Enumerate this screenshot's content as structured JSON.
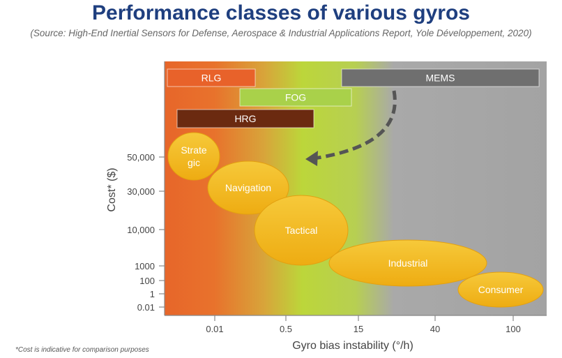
{
  "title": "Performance classes of various gyros",
  "subtitle": "(Source: High-End Inertial Sensors for Defense, Aerospace & Industrial Applications Report, Yole Développement, 2020)",
  "footnote": "*Cost is indicative for comparison purposes",
  "chart_data": {
    "type": "bubble",
    "xlabel": "Gyro bias instability (°/h)",
    "ylabel": "Cost* ($)",
    "x_ticks": [
      "0.01",
      "0.5",
      "15",
      "40",
      "100"
    ],
    "y_ticks": [
      "50,000",
      "30,000",
      "10,000",
      "1000",
      "100",
      "1",
      "0.01"
    ],
    "technology_bars": [
      {
        "name": "RLG",
        "color": "#e8622a",
        "x_range": [
          "",
          "0.5"
        ]
      },
      {
        "name": "FOG",
        "color": "#a9d14a",
        "x_range": [
          "0.01",
          "15"
        ]
      },
      {
        "name": "HRG",
        "color": "#6b2a10",
        "x_range": [
          "",
          "0.5"
        ]
      },
      {
        "name": "MEMS",
        "color": "#6f6f6f",
        "x_range": [
          "15",
          "100"
        ]
      }
    ],
    "performance_classes": [
      {
        "name": "Strate gic",
        "line1": "Strate",
        "line2": "gic"
      },
      {
        "name": "Navigation"
      },
      {
        "name": "Tactical"
      },
      {
        "name": "Industrial"
      },
      {
        "name": "Consumer"
      }
    ],
    "colors": {
      "bubble_fill": "#f3b81f",
      "bubble_stroke": "#e3a010",
      "bubble_text": "#ffffff",
      "gradient_orange": "#e7662a",
      "gradient_green": "#bcd63a",
      "gradient_gray": "#a7a7a7",
      "arrow": "#555555"
    }
  }
}
